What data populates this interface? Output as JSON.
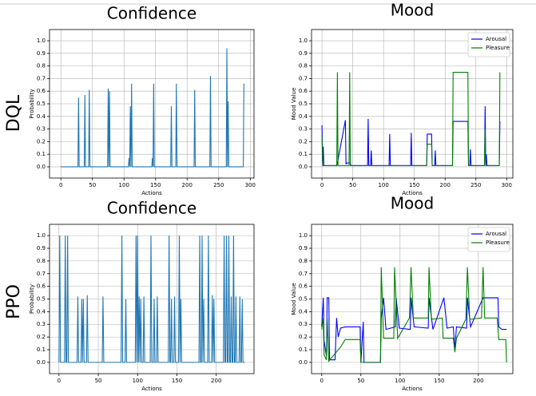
{
  "row_labels": [
    "DQL",
    "PPO"
  ],
  "chart_data": [
    {
      "type": "line",
      "title": "Confidence",
      "xlabel": "Actions",
      "ylabel": "Probability",
      "color": "#1f77b4",
      "grid": true,
      "x": [
        0,
        27,
        28,
        29,
        37,
        38,
        39,
        44,
        45,
        46,
        74,
        75,
        76,
        77,
        78,
        107,
        108,
        109,
        110,
        111,
        112,
        113,
        144,
        145,
        146,
        147,
        148,
        174,
        175,
        176,
        182,
        183,
        184,
        211,
        212,
        213,
        236,
        237,
        238,
        262,
        263,
        264,
        265,
        266,
        289,
        290
      ],
      "values": [
        0,
        0,
        0.55,
        0,
        0,
        0.57,
        0,
        0,
        0.61,
        0,
        0,
        0.62,
        0,
        0.6,
        0,
        0,
        0.07,
        0,
        0.48,
        0,
        0.66,
        0,
        0,
        0.07,
        0,
        0.66,
        0,
        0,
        0.48,
        0,
        0,
        0.66,
        0,
        0,
        0.61,
        0,
        0,
        0.72,
        0,
        0,
        0.94,
        0,
        0.52,
        0,
        0,
        0.66
      ],
      "xlim": [
        -18,
        306
      ],
      "xticks": [
        0,
        50,
        100,
        150,
        200,
        250,
        300
      ],
      "ylim": [
        -0.089,
        1.089
      ],
      "yticks": [
        {
          "value": 0,
          "label": "0.0"
        },
        0.1,
        0.2,
        0.3,
        0.4,
        0.5,
        0.6,
        0.7,
        0.8,
        0.9,
        {
          "value": 1,
          "label": "1.0"
        }
      ]
    },
    {
      "type": "line",
      "title": "Mood",
      "xlabel": "Actions",
      "ylabel": "Mood Value",
      "grid": true,
      "legend": "upper right",
      "series": [
        {
          "name": "Arousal",
          "color": "#0000ff",
          "x": [
            0,
            1,
            2,
            3,
            24,
            25,
            38,
            39,
            40,
            46,
            47,
            74,
            75,
            76,
            79,
            80,
            81,
            109,
            110,
            111,
            144,
            145,
            146,
            170,
            171,
            178,
            179,
            183,
            184,
            185,
            212,
            213,
            237,
            238,
            240,
            241,
            242,
            264,
            265,
            266,
            267,
            268,
            288,
            289
          ],
          "values": [
            0.33,
            0.02,
            0.16,
            0.01,
            0.01,
            0.03,
            0.37,
            0.02,
            0.03,
            0.03,
            0.01,
            0.01,
            0.38,
            0.01,
            0.01,
            0.13,
            0.01,
            0.01,
            0.26,
            0.01,
            0.01,
            0.27,
            0.01,
            0.01,
            0.26,
            0.26,
            0.01,
            0.01,
            0.13,
            0.01,
            0.01,
            0.36,
            0.36,
            0.01,
            0.01,
            0.14,
            0.01,
            0.01,
            0.48,
            0.01,
            0.1,
            0.01,
            0.01,
            0.36
          ]
        },
        {
          "name": "Pleasure",
          "color": "#008000",
          "x": [
            0,
            1,
            24,
            25,
            26,
            44,
            45,
            46,
            170,
            171,
            178,
            179,
            212,
            213,
            237,
            238,
            264,
            265,
            266,
            288,
            289
          ],
          "values": [
            0.25,
            0.01,
            0.01,
            0.75,
            0.01,
            0.01,
            0.75,
            0.01,
            0.01,
            0.18,
            0.18,
            0.01,
            0.01,
            0.75,
            0.75,
            0.01,
            0.01,
            0.3,
            0.01,
            0.01,
            0.75
          ]
        }
      ],
      "xlim": [
        -17,
        310
      ],
      "xticks": [
        0,
        50,
        100,
        150,
        200,
        250,
        300
      ],
      "ylim": [
        -0.089,
        1.089
      ],
      "yticks": [
        {
          "value": 0,
          "label": "0.0"
        },
        0.1,
        0.2,
        0.3,
        0.4,
        0.5,
        0.6,
        0.7,
        0.8,
        0.9,
        {
          "value": 1,
          "label": "1.0"
        }
      ]
    },
    {
      "type": "line",
      "title": "Confidence",
      "xlabel": "Actions",
      "ylabel": "Probability",
      "color": "#1f77b4",
      "grid": true,
      "x": [
        0,
        1,
        2,
        7,
        8,
        9,
        10,
        11,
        12,
        23,
        24,
        25,
        28,
        29,
        30,
        31,
        32,
        35,
        36,
        37,
        55,
        56,
        57,
        79,
        80,
        81,
        84,
        85,
        86,
        97,
        98,
        99,
        100,
        101,
        102,
        103,
        104,
        105,
        107,
        108,
        109,
        116,
        117,
        118,
        120,
        121,
        122,
        124,
        125,
        126,
        139,
        140,
        141,
        142,
        143,
        144,
        146,
        147,
        148,
        152,
        153,
        154,
        155,
        156,
        178,
        179,
        180,
        181,
        182,
        183,
        184,
        185,
        189,
        190,
        191,
        194,
        195,
        196,
        197,
        198,
        209,
        210,
        211,
        212,
        213,
        214,
        215,
        216,
        217,
        218,
        219,
        220,
        221,
        222,
        223,
        224,
        225,
        226,
        229,
        230,
        231,
        232,
        233,
        234,
        236
      ],
      "values": [
        0,
        1,
        0,
        0,
        1,
        0,
        0,
        1,
        0,
        0,
        0.52,
        0,
        0,
        0.5,
        0,
        0.5,
        0,
        0,
        0.53,
        0,
        0,
        0.52,
        0,
        0,
        1,
        0,
        0,
        0.5,
        0,
        0,
        1,
        0,
        1,
        0,
        0.52,
        0,
        0.5,
        0,
        0,
        0.52,
        0,
        0,
        1,
        0,
        0,
        0.5,
        0,
        0,
        0.52,
        0,
        0,
        1,
        0,
        0,
        0.5,
        0,
        0,
        0.52,
        0,
        0,
        1,
        0,
        0.5,
        0,
        0,
        1,
        0,
        0,
        1,
        0,
        0.5,
        0,
        0,
        1,
        0,
        0,
        0.53,
        0,
        0.5,
        0,
        0,
        1,
        0,
        0,
        1,
        0,
        0,
        1,
        0,
        0,
        0.52,
        0,
        0,
        1,
        0,
        0,
        0.52,
        0,
        0,
        0.52,
        0,
        0,
        0.5,
        0,
        0
      ],
      "xlim": [
        -12,
        248
      ],
      "xticks": [
        0,
        50,
        100,
        150,
        200
      ],
      "ylim": [
        -0.089,
        1.089
      ],
      "yticks": [
        {
          "value": 0,
          "label": "0.0"
        },
        0.1,
        0.2,
        0.3,
        0.4,
        0.5,
        0.6,
        0.7,
        0.8,
        0.9,
        {
          "value": 1,
          "label": "1.0"
        }
      ]
    },
    {
      "type": "line",
      "title": "Mood",
      "xlabel": "Actions",
      "ylabel": "Mood Value",
      "grid": true,
      "legend": "upper right",
      "series": [
        {
          "name": "Arousal",
          "color": "#0000ff",
          "x": [
            0,
            2,
            3,
            6,
            7,
            9,
            10,
            17,
            19,
            21,
            24,
            30,
            49,
            50,
            53,
            54,
            75,
            76,
            79,
            82,
            94,
            95,
            99,
            113,
            114,
            118,
            136,
            137,
            142,
            156,
            160,
            168,
            170,
            172,
            185,
            186,
            190,
            206,
            225,
            226,
            230,
            236
          ],
          "values": [
            0.28,
            0.51,
            0.17,
            0.05,
            0.51,
            0.51,
            0.02,
            0.02,
            0.35,
            0.2,
            0.27,
            0.28,
            0.28,
            0,
            0.32,
            0,
            0,
            0.35,
            0.51,
            0.26,
            0.28,
            0.51,
            0.27,
            0.26,
            0.51,
            0.28,
            0.27,
            0.51,
            0.26,
            0.51,
            0.27,
            0.28,
            0.1,
            0.28,
            0.27,
            0.51,
            0.28,
            0.51,
            0.51,
            0.28,
            0.26,
            0.26
          ]
        },
        {
          "name": "Pleasure",
          "color": "#008000",
          "x": [
            0,
            2,
            3,
            6,
            7,
            9,
            24,
            30,
            49,
            50,
            75,
            76,
            79,
            92,
            93,
            97,
            112,
            114,
            117,
            136,
            137,
            140,
            154,
            155,
            168,
            170,
            172,
            184,
            186,
            189,
            204,
            206,
            208,
            224,
            226,
            235,
            236
          ],
          "values": [
            0.26,
            0.35,
            0.06,
            0.02,
            0.35,
            0.01,
            0.12,
            0.18,
            0.18,
            0,
            0,
            0.75,
            0.19,
            0.19,
            0.75,
            0.19,
            0.35,
            0.75,
            0.35,
            0.35,
            0.75,
            0.34,
            0.35,
            0.19,
            0.19,
            0.08,
            0.19,
            0.34,
            0.75,
            0.34,
            0.35,
            0.75,
            0.35,
            0.35,
            0.18,
            0.18,
            0
          ]
        }
      ],
      "xlim": [
        -13,
        244
      ],
      "xticks": [
        0,
        50,
        100,
        150,
        200
      ],
      "ylim": [
        -0.089,
        1.089
      ],
      "yticks": [
        {
          "value": 0,
          "label": "0.0"
        },
        0.1,
        0.2,
        0.3,
        0.4,
        0.5,
        0.6,
        0.7,
        0.8,
        0.9,
        {
          "value": 1,
          "label": "1.0"
        }
      ]
    }
  ]
}
